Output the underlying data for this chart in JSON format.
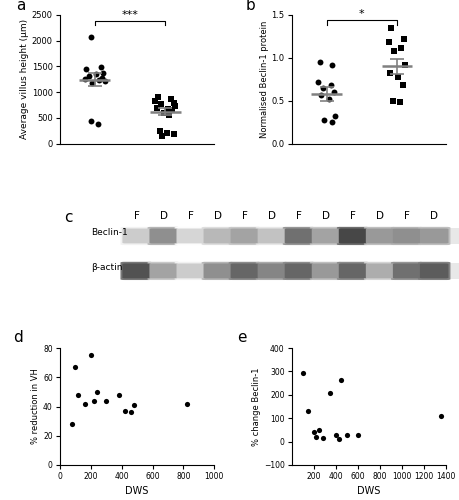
{
  "panel_a": {
    "label": "a",
    "ylabel": "Average villus height (μm)",
    "ylim": [
      0,
      2500
    ],
    "yticks": [
      0,
      500,
      1000,
      1500,
      2000,
      2500
    ],
    "functional_dots": [
      2080,
      1480,
      1450,
      1380,
      1350,
      1320,
      1280,
      1260,
      1230,
      1210,
      1180,
      430,
      380
    ],
    "functional_mean": 1240,
    "functional_sem": 130,
    "defunctioned_dots": [
      900,
      860,
      820,
      790,
      760,
      730,
      700,
      680,
      650,
      600,
      550,
      250,
      200,
      180,
      150
    ],
    "defunctioned_mean": 620,
    "defunctioned_sem": 70,
    "sig_text": "***",
    "x_func": 1,
    "x_defunc": 2
  },
  "panel_b": {
    "label": "b",
    "ylabel": "Normalised Beclin-1 protein",
    "ylim": [
      0.0,
      1.5
    ],
    "yticks": [
      0.0,
      0.5,
      1.0,
      1.5
    ],
    "functional_dots": [
      0.95,
      0.92,
      0.72,
      0.68,
      0.65,
      0.6,
      0.57,
      0.52,
      0.32,
      0.28,
      0.25
    ],
    "functional_mean": 0.58,
    "functional_sem": 0.08,
    "defunctioned_dots": [
      1.35,
      1.22,
      1.18,
      1.12,
      1.08,
      0.92,
      0.82,
      0.78,
      0.68,
      0.5,
      0.48
    ],
    "defunctioned_mean": 0.9,
    "defunctioned_sem": 0.09,
    "sig_text": "*",
    "x_func": 1,
    "x_defunc": 2
  },
  "panel_c": {
    "label": "c",
    "lane_labels": [
      "F",
      "D",
      "F",
      "D",
      "F",
      "D",
      "F",
      "D",
      "F",
      "D",
      "F",
      "D"
    ],
    "row_labels": [
      "Beclin-1",
      "β-actin"
    ],
    "beclin_intensities": [
      0.25,
      0.55,
      0.2,
      0.35,
      0.45,
      0.3,
      0.7,
      0.45,
      0.9,
      0.5,
      0.55,
      0.5
    ],
    "actin_intensities": [
      0.85,
      0.45,
      0.25,
      0.55,
      0.75,
      0.6,
      0.75,
      0.5,
      0.75,
      0.4,
      0.7,
      0.8
    ]
  },
  "panel_d": {
    "label": "d",
    "xlabel": "DWS",
    "ylabel": "% reduction in VH",
    "xlim": [
      0,
      1000
    ],
    "ylim": [
      0,
      80
    ],
    "xticks": [
      0,
      200,
      400,
      600,
      800,
      1000
    ],
    "yticks": [
      0,
      20,
      40,
      60,
      80
    ],
    "x": [
      80,
      100,
      120,
      160,
      200,
      220,
      240,
      300,
      380,
      420,
      460,
      480,
      820
    ],
    "y": [
      28,
      67,
      48,
      42,
      75,
      44,
      50,
      44,
      48,
      37,
      36,
      41,
      42
    ]
  },
  "panel_e": {
    "label": "e",
    "xlabel": "DWS",
    "ylabel": "% change Beclin-1",
    "xlim": [
      0,
      1400
    ],
    "ylim": [
      -100,
      400
    ],
    "xticks": [
      200,
      400,
      600,
      800,
      1000,
      1200,
      1400
    ],
    "yticks": [
      -100,
      0,
      100,
      200,
      300,
      400
    ],
    "x": [
      100,
      150,
      200,
      220,
      250,
      280,
      350,
      400,
      430,
      450,
      500,
      600,
      1350
    ],
    "y": [
      295,
      130,
      40,
      20,
      50,
      15,
      210,
      30,
      10,
      265,
      30,
      30,
      110
    ]
  },
  "dot_color": "#000000",
  "mean_line_color": "#808080",
  "background_color": "#ffffff"
}
